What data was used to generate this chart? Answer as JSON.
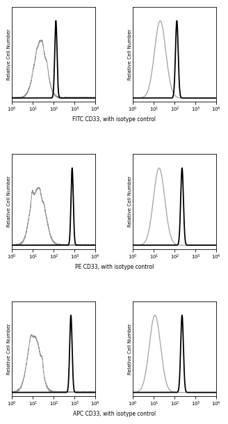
{
  "rows": 3,
  "cols": 2,
  "ylabel": "Relative Cell Number",
  "background_color": "#ffffff",
  "row_labels": [
    "FITC CD33, with isotype control",
    "PE CD33, with isotype control",
    "APC CD33, with isotype control"
  ],
  "panels": [
    {
      "row": 0,
      "col": 0,
      "gray_mean_log": 1.35,
      "gray_sigma_log": 0.3,
      "gray_amplitude": 0.75,
      "black_mean_log": 2.1,
      "black_sigma_log": 0.055,
      "black_amplitude": 1.0,
      "gray_noisy": true
    },
    {
      "row": 0,
      "col": 1,
      "gray_mean_log": 1.3,
      "gray_sigma_log": 0.27,
      "gray_amplitude": 1.0,
      "black_mean_log": 2.1,
      "black_sigma_log": 0.065,
      "black_amplitude": 1.0,
      "gray_noisy": false
    },
    {
      "row": 1,
      "col": 0,
      "gray_mean_log": 1.25,
      "gray_sigma_log": 0.32,
      "gray_amplitude": 0.75,
      "black_mean_log": 2.88,
      "black_sigma_log": 0.055,
      "black_amplitude": 1.0,
      "gray_noisy": true
    },
    {
      "row": 1,
      "col": 1,
      "gray_mean_log": 1.25,
      "gray_sigma_log": 0.27,
      "gray_amplitude": 1.0,
      "black_mean_log": 2.35,
      "black_sigma_log": 0.065,
      "black_amplitude": 1.0,
      "gray_noisy": false
    },
    {
      "row": 2,
      "col": 0,
      "gray_mean_log": 1.05,
      "gray_sigma_log": 0.3,
      "gray_amplitude": 0.75,
      "black_mean_log": 2.82,
      "black_sigma_log": 0.058,
      "black_amplitude": 1.0,
      "gray_noisy": true
    },
    {
      "row": 2,
      "col": 1,
      "gray_mean_log": 1.05,
      "gray_sigma_log": 0.27,
      "gray_amplitude": 1.0,
      "black_mean_log": 2.35,
      "black_sigma_log": 0.065,
      "black_amplitude": 1.0,
      "gray_noisy": false
    }
  ]
}
